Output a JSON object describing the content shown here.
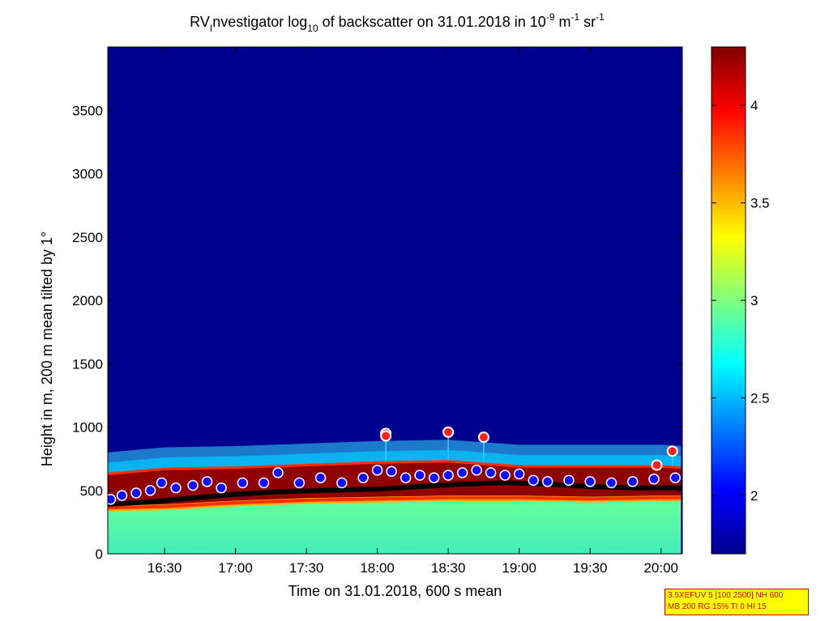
{
  "chart_data": {
    "type": "heatmap",
    "title": {
      "prefix": "RV",
      "prefix_sub": "I",
      "part1": "nvestigator log",
      "log_base": "10",
      "part2": " of backscatter on 31.01.2018 in 10",
      "exp1": "-9",
      "part3": " m",
      "exp2": "-1",
      "part4": " sr",
      "exp3": "-1"
    },
    "xlabel": "Time on 31.01.2018, 600 s mean",
    "ylabel": "Height in m, 200 m mean tilted by 1°",
    "x_unit": "hours",
    "xlim": [
      16.1,
      20.15
    ],
    "ylim": [
      0,
      4000
    ],
    "x_ticks": [
      {
        "value": 16.5,
        "label": "16:30"
      },
      {
        "value": 17.0,
        "label": "17:00"
      },
      {
        "value": 17.5,
        "label": "17:30"
      },
      {
        "value": 18.0,
        "label": "18:00"
      },
      {
        "value": 18.5,
        "label": "18:30"
      },
      {
        "value": 19.0,
        "label": "19:00"
      },
      {
        "value": 19.5,
        "label": "19:30"
      },
      {
        "value": 20.0,
        "label": "20:00"
      }
    ],
    "y_ticks": [
      {
        "value": 0,
        "label": "0"
      },
      {
        "value": 500,
        "label": "500"
      },
      {
        "value": 1000,
        "label": "1000"
      },
      {
        "value": 1500,
        "label": "1500"
      },
      {
        "value": 2000,
        "label": "2000"
      },
      {
        "value": 2500,
        "label": "2500"
      },
      {
        "value": 3000,
        "label": "3000"
      },
      {
        "value": 3500,
        "label": "3500"
      }
    ],
    "colorbar": {
      "range": [
        1.7,
        4.3
      ],
      "ticks": [
        {
          "value": 2,
          "label": "2"
        },
        {
          "value": 2.5,
          "label": "2.5"
        },
        {
          "value": 3,
          "label": "3"
        },
        {
          "value": 3.5,
          "label": "3.5"
        },
        {
          "value": 4,
          "label": "4"
        }
      ],
      "colormap": "jet"
    },
    "colors": {
      "background_low": "#00008f",
      "near_ground": "#55ffaa",
      "aerosol_layer": "#8f0000",
      "layer_edge": "#ff3000",
      "cloud_base_markers": "#1010ff",
      "cloud_marker_outline": "#ffffff",
      "boundary_layer_height_line": "#000000",
      "haze": "#33ddff"
    },
    "series": [
      {
        "role": "aerosol layer top",
        "x": [
          16.1,
          16.5,
          17.0,
          17.5,
          18.0,
          18.5,
          19.0,
          19.5,
          20.0,
          20.15
        ],
        "y": [
          640,
          680,
          690,
          710,
          730,
          740,
          700,
          700,
          700,
          690
        ]
      },
      {
        "role": "aerosol layer base",
        "x": [
          16.1,
          16.5,
          17.0,
          17.5,
          18.0,
          18.5,
          19.0,
          19.5,
          20.0,
          20.15
        ],
        "y": [
          360,
          370,
          400,
          420,
          430,
          440,
          440,
          430,
          440,
          440
        ]
      },
      {
        "role": "boundary layer height line",
        "x": [
          16.1,
          16.4,
          16.7,
          17.0,
          17.3,
          17.6,
          18.0,
          18.3,
          18.6,
          18.9,
          19.2,
          19.5,
          19.8,
          20.15
        ],
        "y": [
          390,
          410,
          440,
          470,
          490,
          500,
          510,
          530,
          550,
          560,
          550,
          530,
          520,
          520
        ]
      },
      {
        "role": "cloud base markers",
        "x": [
          16.12,
          16.2,
          16.3,
          16.4,
          16.48,
          16.58,
          16.7,
          16.8,
          16.9,
          17.05,
          17.2,
          17.3,
          17.45,
          17.6,
          17.75,
          17.9,
          18.0,
          18.1,
          18.2,
          18.3,
          18.4,
          18.5,
          18.6,
          18.7,
          18.8,
          18.9,
          19.0,
          19.1,
          19.2,
          19.35,
          19.5,
          19.65,
          19.8,
          19.95,
          20.1
        ],
        "y": [
          430,
          460,
          480,
          500,
          560,
          520,
          540,
          570,
          520,
          560,
          560,
          640,
          560,
          600,
          560,
          600,
          660,
          650,
          600,
          620,
          600,
          620,
          640,
          660,
          640,
          620,
          630,
          580,
          570,
          580,
          570,
          560,
          570,
          590,
          600
        ]
      },
      {
        "role": "isolated cloud markers",
        "x": [
          18.06,
          18.06,
          18.5,
          18.75,
          20.08,
          19.97
        ],
        "y": [
          950,
          930,
          960,
          920,
          810,
          700
        ]
      }
    ]
  },
  "param_box": {
    "line1": "3.5XEFUV 5 [100 2500] NH 600",
    "line2": "MB 200 RG 15% TI 0 HI 15"
  }
}
